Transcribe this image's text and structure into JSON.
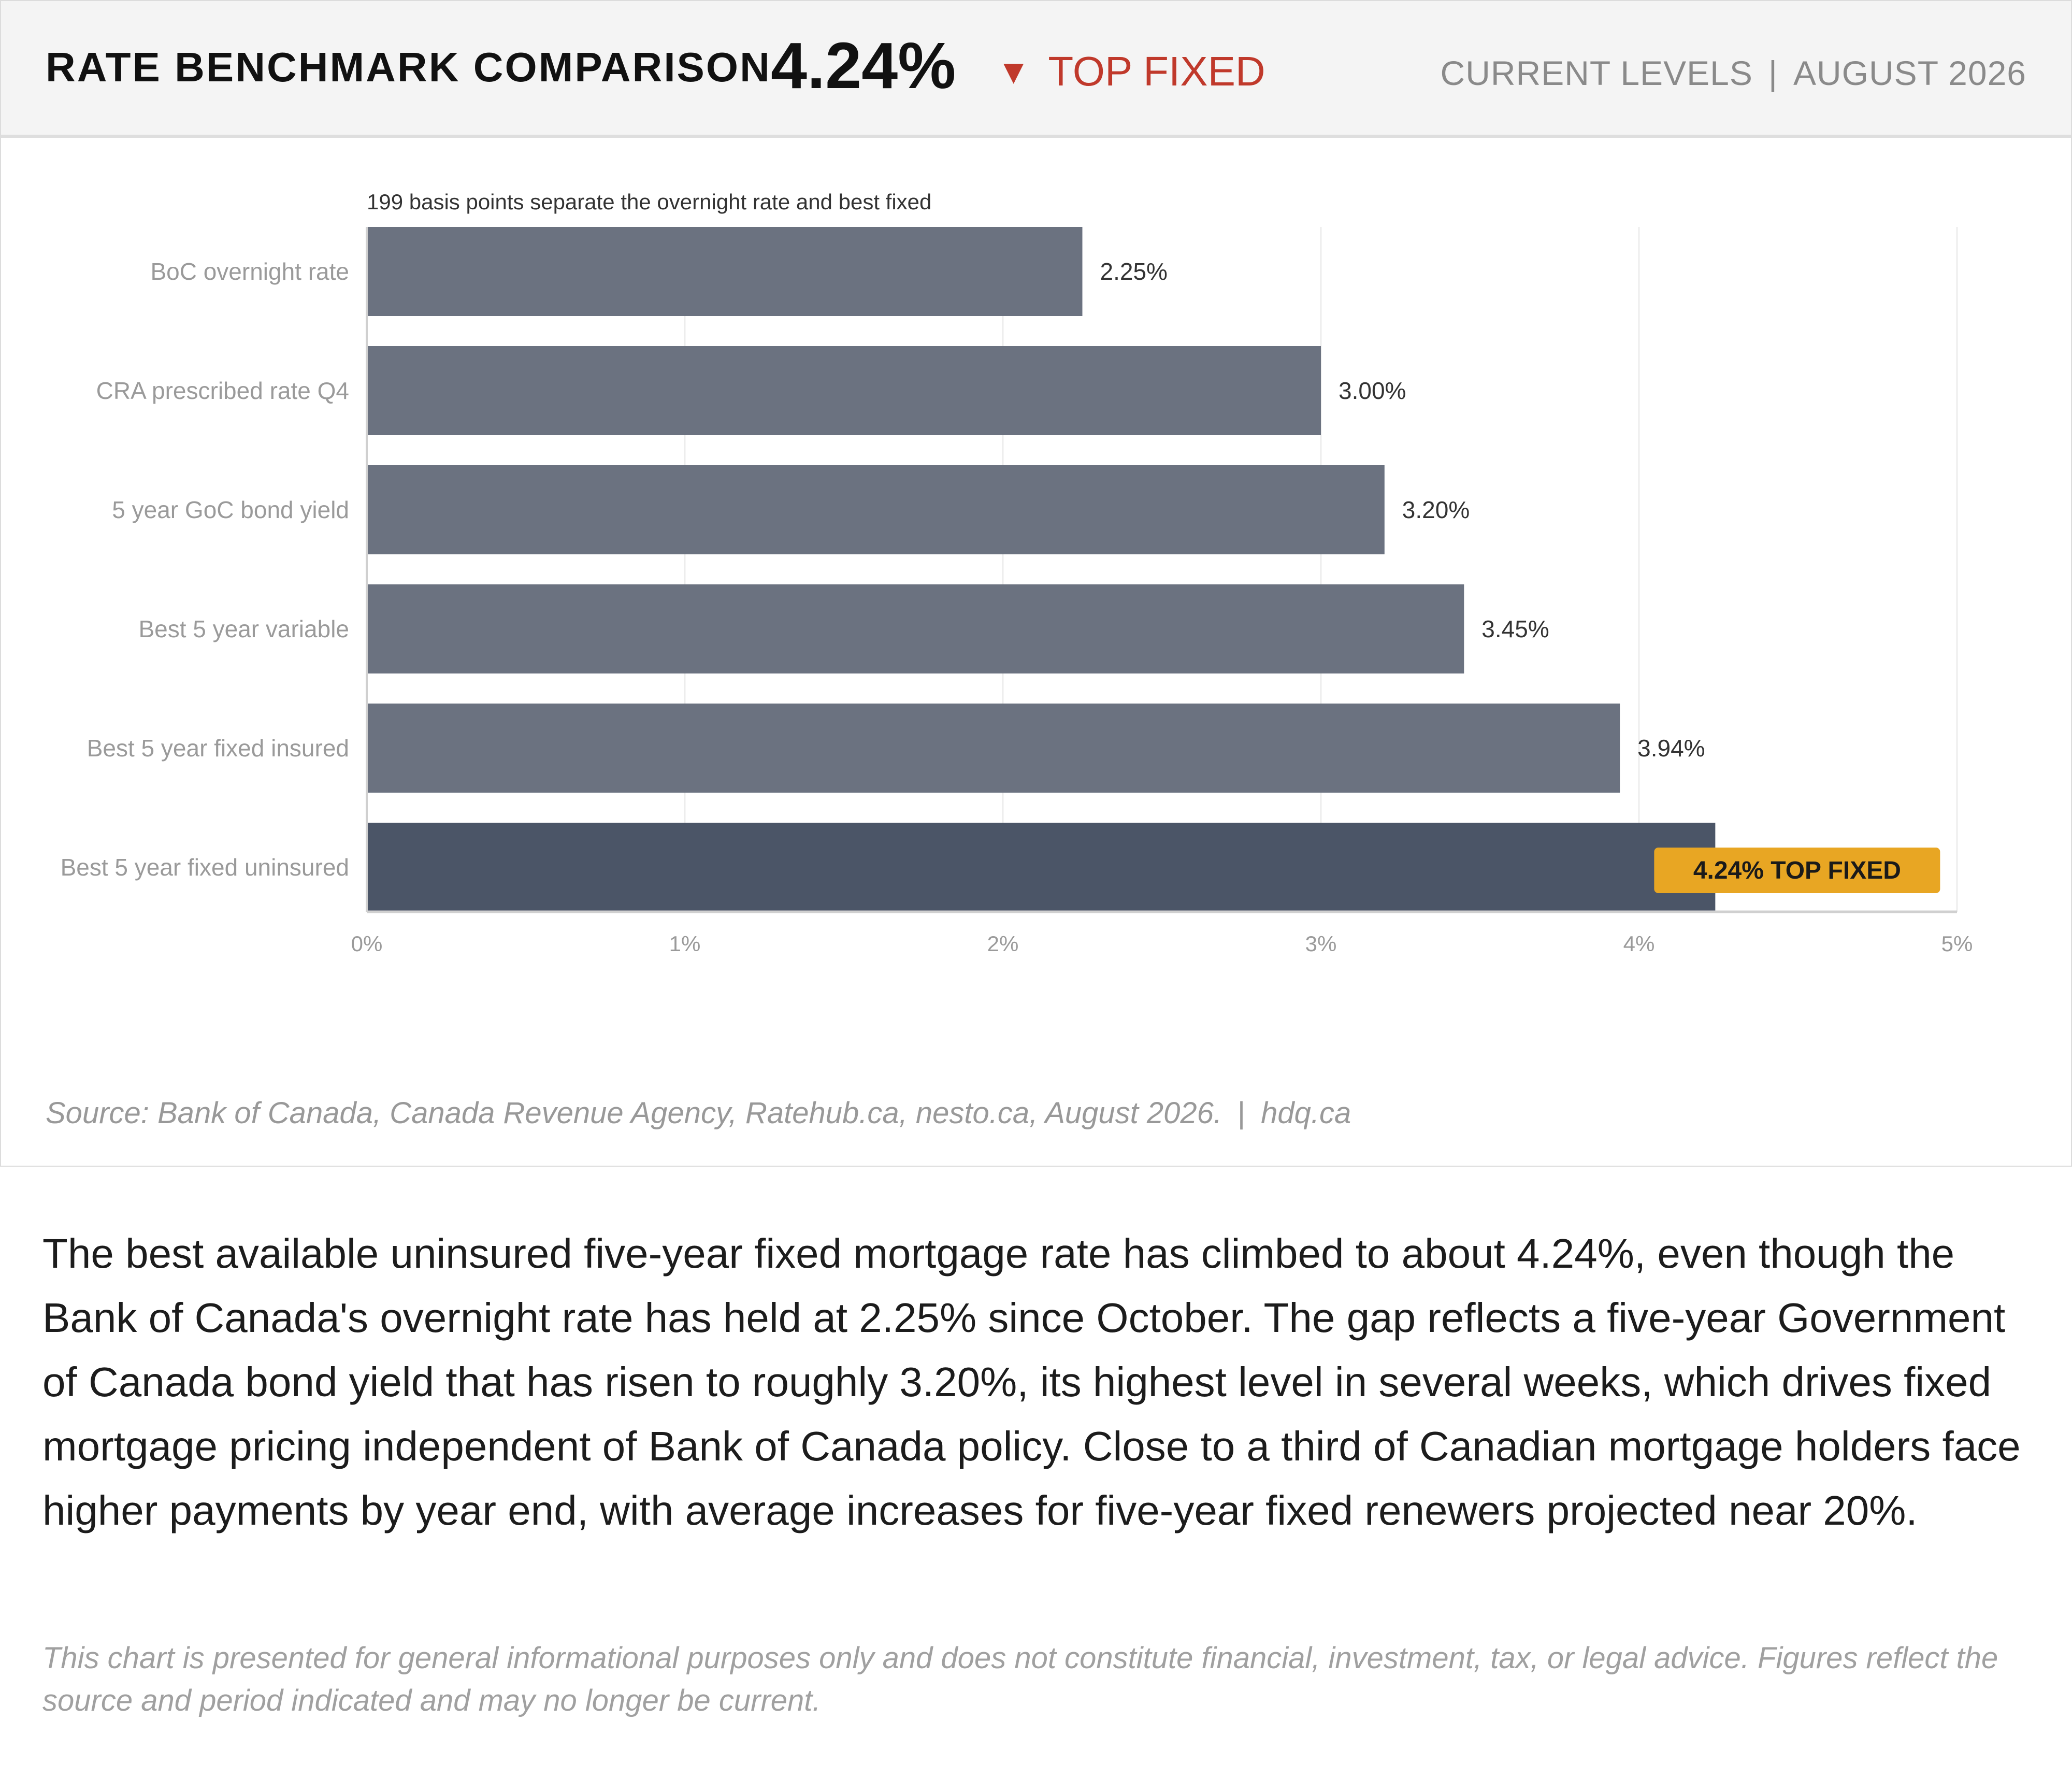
{
  "header": {
    "title": "RATE BENCHMARK COMPARISON",
    "value": "4.24%",
    "badge_arrow": "▼",
    "badge_label": "TOP FIXED",
    "meta_left": "CURRENT LEVELS",
    "meta_sep": "|",
    "meta_right": "AUGUST 2026"
  },
  "colors": {
    "bar": "#6b7280",
    "bar_highlight": "#4b5567",
    "highlight_label_bg": "#e8a623",
    "badge_red": "#c0392b",
    "header_bg": "#f4f4f4"
  },
  "chart_data": {
    "type": "bar",
    "orientation": "horizontal",
    "annotation": "199 basis points separate the overnight rate and best fixed",
    "categories": [
      "BoC overnight rate",
      "CRA prescribed rate Q4",
      "5 year GoC bond yield",
      "Best 5 year variable",
      "Best 5 year fixed insured",
      "Best 5 year fixed uninsured"
    ],
    "values": [
      2.25,
      3.0,
      3.2,
      3.45,
      3.94,
      4.24
    ],
    "value_labels": [
      "2.25%",
      "3.00%",
      "3.20%",
      "3.45%",
      "3.94%",
      "4.24% TOP FIXED"
    ],
    "highlight_index": 5,
    "xlim": [
      0,
      5
    ],
    "xticks": [
      0,
      1,
      2,
      3,
      4,
      5
    ],
    "xtick_labels": [
      "0%",
      "1%",
      "2%",
      "3%",
      "4%",
      "5%"
    ],
    "xlabel": "",
    "ylabel": "",
    "grid": true
  },
  "source": {
    "text": "Source: Bank of Canada, Canada Revenue Agency, Ratehub.ca, nesto.ca, August 2026.",
    "sep": "|",
    "site": "hdq.ca"
  },
  "article": {
    "body": "The best available uninsured five-year fixed mortgage rate has climbed to about 4.24%, even though the Bank of Canada's overnight rate has held at 2.25% since October. The gap reflects a five-year Government of Canada bond yield that has risen to roughly 3.20%, its highest level in several weeks, which drives fixed mortgage pricing independent of Bank of Canada policy. Close to a third of Canadian mortgage holders face higher payments by year end, with average increases for five-year fixed renewers projected near 20%.",
    "disclaimer": "This chart is presented for general informational purposes only and does not constitute financial, investment, tax, or legal advice. Figures reflect the source and period indicated and may no longer be current."
  }
}
